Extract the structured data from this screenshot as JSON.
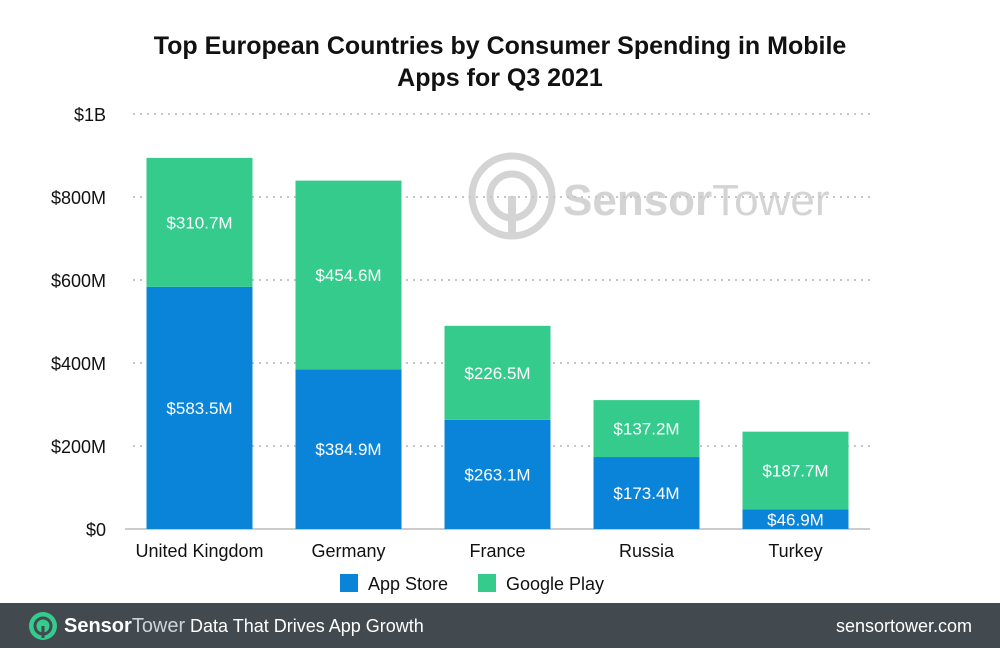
{
  "colors": {
    "app_store": "#0a84d8",
    "google_play": "#34cb8d",
    "footer_bg": "#424a50",
    "grid": "#c6c6c6",
    "watermark": "#d4d4d4"
  },
  "watermark": {
    "word1": "Sensor",
    "word2": "Tower"
  },
  "footer": {
    "brand_word1": "Sensor",
    "brand_word2": "Tower",
    "tagline": "Data That Drives App Growth",
    "site": "sensortower.com"
  },
  "chart_data": {
    "type": "bar",
    "stacked": true,
    "title_line1": "Top European Countries by Consumer Spending in Mobile",
    "title_line2": "Apps for Q3 2021",
    "categories": [
      "United Kingdom",
      "Germany",
      "France",
      "Russia",
      "Turkey"
    ],
    "series": [
      {
        "name": "App Store",
        "values": [
          583.5,
          384.9,
          263.1,
          173.4,
          46.9
        ],
        "labels": [
          "$583.5M",
          "$384.9M",
          "$263.1M",
          "$173.4M",
          "$46.9M"
        ]
      },
      {
        "name": "Google Play",
        "values": [
          310.7,
          454.6,
          226.5,
          137.2,
          187.7
        ],
        "labels": [
          "$310.7M",
          "$454.6M",
          "$226.5M",
          "$137.2M",
          "$187.7M"
        ]
      }
    ],
    "y_ticks": [
      {
        "value": 0,
        "label": "$0"
      },
      {
        "value": 200,
        "label": "$200M"
      },
      {
        "value": 400,
        "label": "$400M"
      },
      {
        "value": 600,
        "label": "$600M"
      },
      {
        "value": 800,
        "label": "$800M"
      },
      {
        "value": 1000,
        "label": "$1B"
      }
    ],
    "ylim": [
      0,
      1000
    ],
    "grid": true,
    "legend_position": "bottom"
  }
}
